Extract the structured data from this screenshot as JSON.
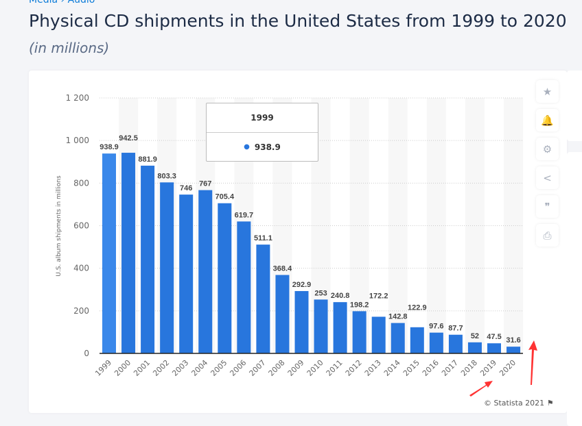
{
  "breadcrumb": {
    "items": [
      "Media",
      "Audio"
    ],
    "sep": "›"
  },
  "title": "Physical CD shipments in the United States from 1999 to 2020",
  "subtitle": "(in millions)",
  "tooltip": {
    "year": "1999",
    "value": "938.9"
  },
  "credit": "© Statista 2021",
  "tools": [
    {
      "icon": "star-icon",
      "glyph": "★"
    },
    {
      "icon": "bell-icon",
      "glyph": "🔔"
    },
    {
      "icon": "gear-icon",
      "glyph": "⚙"
    },
    {
      "icon": "share-icon",
      "glyph": "<"
    },
    {
      "icon": "quote-icon",
      "glyph": "❞"
    },
    {
      "icon": "print-icon",
      "glyph": "⎙"
    }
  ],
  "colors": {
    "bar": "#2876dd",
    "bar_highlight": "#3a88ea",
    "arrow": "#ff3333"
  },
  "chart_data": {
    "type": "bar",
    "title": "",
    "xlabel": "",
    "ylabel": "U.S. album shipments in millions",
    "ylim": [
      0,
      1200
    ],
    "yticks": [
      0,
      200,
      400,
      600,
      800,
      1000,
      1200
    ],
    "ytick_labels": [
      "0",
      "200",
      "400",
      "600",
      "800",
      "1 000",
      "1 200"
    ],
    "grid": true,
    "categories": [
      "1999",
      "2000",
      "2001",
      "2002",
      "2003",
      "2004",
      "2005",
      "2006",
      "2007",
      "2008",
      "2009",
      "2010",
      "2011",
      "2012",
      "2013",
      "2014",
      "2015",
      "2016",
      "2017",
      "2018",
      "2019",
      "2020"
    ],
    "values": [
      938.9,
      942.5,
      881.9,
      803.3,
      746,
      767,
      705.4,
      619.7,
      511.1,
      368.4,
      292.9,
      253,
      240.8,
      198.2,
      172.2,
      142.8,
      122.9,
      97.6,
      87.7,
      52,
      47.5,
      31.6
    ],
    "labels": [
      "938.9",
      "942.5",
      "881.9",
      "803.3",
      "746",
      "767",
      "705.4",
      "619.7",
      "511.1",
      "368.4",
      "292.9",
      "253",
      "240.8",
      "198.2",
      "172.2",
      "142.8",
      "122.9",
      "97.6",
      "87.7",
      "52",
      "47.5",
      "31.6"
    ]
  }
}
